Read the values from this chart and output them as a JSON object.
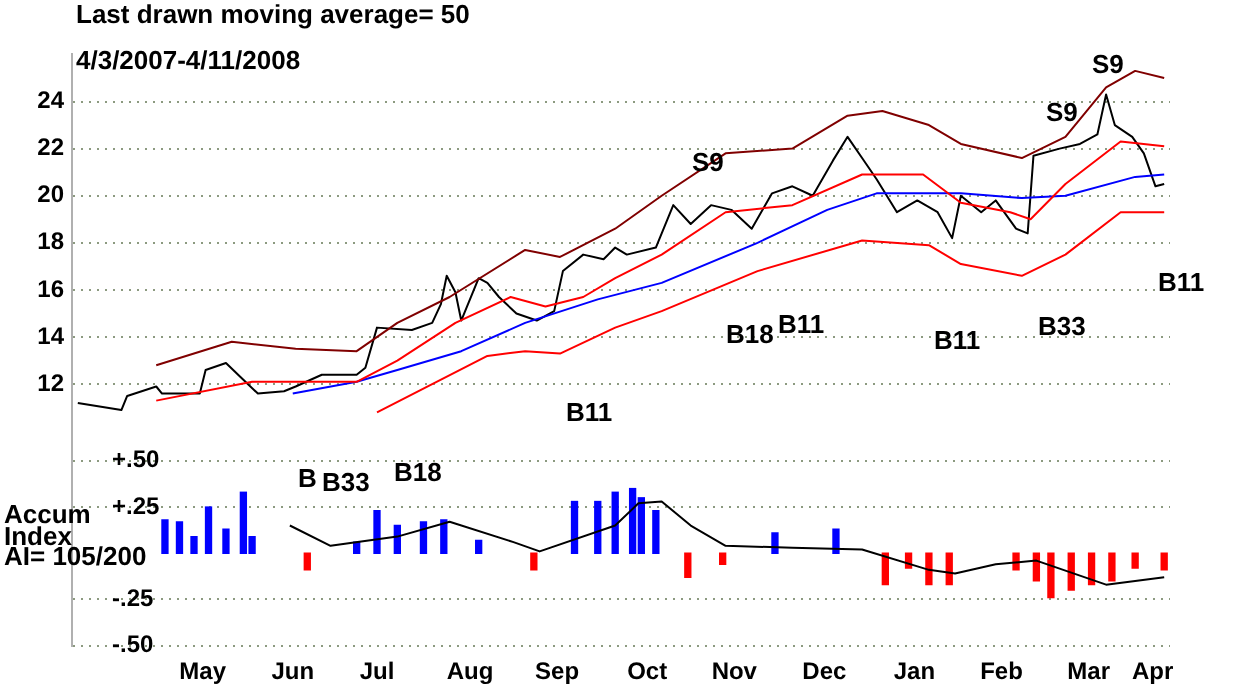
{
  "chart_data": {
    "type": "line",
    "title": "Last drawn moving average= 50",
    "annotations": [
      "4/3/2007-4/11/2008",
      "AI= 105/200",
      "B",
      "B33",
      "B18",
      "S9",
      "S9",
      "S9",
      "B11",
      "B18",
      "B11",
      "B11",
      "B33",
      "B11",
      "Accum Index"
    ],
    "xlim": [
      "2007-04-01",
      "2008-04-13"
    ],
    "xticks": [
      {
        "value": "2007-05-16",
        "label": "May"
      },
      {
        "value": "2007-06-16",
        "label": "Jun"
      },
      {
        "value": "2007-07-15",
        "label": "Jul"
      },
      {
        "value": "2007-08-16",
        "label": "Aug"
      },
      {
        "value": "2007-09-15",
        "label": "Sep"
      },
      {
        "value": "2007-10-16",
        "label": "Oct"
      },
      {
        "value": "2007-11-15",
        "label": "Nov"
      },
      {
        "value": "2007-12-16",
        "label": "Dec"
      },
      {
        "value": "2008-01-16",
        "label": "Jan"
      },
      {
        "value": "2008-02-15",
        "label": "Feb"
      },
      {
        "value": "2008-03-16",
        "label": "Mar"
      },
      {
        "value": "2008-04-07",
        "label": "Apr"
      }
    ],
    "ylim": [
      0.9,
      26
    ],
    "yticks": [
      12,
      14,
      16,
      18,
      20,
      22,
      24
    ],
    "y2lim": [
      -0.5,
      2.7
    ],
    "y2ticks": [
      {
        "value": 0.5,
        "label": "+.50"
      },
      {
        "value": 0.25,
        "label": "+.25"
      },
      {
        "value": -0.25,
        "label": "-.25"
      },
      {
        "value": -0.5,
        "label": "-.50"
      }
    ],
    "grid": "y",
    "marker": "none",
    "series": [
      {
        "color": "#800000",
        "x": [
          "2007-04-30",
          "2007-05-26",
          "2007-06-17",
          "2007-07-08",
          "2007-07-22",
          "2007-08-09",
          "2007-09-04",
          "2007-09-16",
          "2007-10-05",
          "2007-10-21",
          "2007-11-12",
          "2007-12-05",
          "2007-12-24",
          "2008-01-05",
          "2008-01-21",
          "2008-02-01",
          "2008-02-22",
          "2008-03-08",
          "2008-03-22",
          "2008-04-01",
          "2008-04-11"
        ],
        "values": [
          12.8,
          13.8,
          13.5,
          13.4,
          14.6,
          15.7,
          17.7,
          17.4,
          18.6,
          20.0,
          21.8,
          22.0,
          23.4,
          23.6,
          23.0,
          22.2,
          21.6,
          22.5,
          24.6,
          25.3,
          25.0
        ]
      },
      {
        "color": "#ff0000",
        "x": [
          "2007-04-30",
          "2007-06-02",
          "2007-06-22",
          "2007-07-08",
          "2007-07-22",
          "2007-08-11",
          "2007-08-30",
          "2007-09-11",
          "2007-09-24",
          "2007-10-05",
          "2007-10-21",
          "2007-11-12",
          "2007-12-05",
          "2007-12-29",
          "2008-01-19",
          "2008-02-01",
          "2008-02-18",
          "2008-02-25",
          "2008-03-08",
          "2008-03-27",
          "2008-04-11"
        ],
        "values": [
          11.3,
          12.1,
          12.1,
          12.1,
          13.0,
          14.6,
          15.7,
          15.3,
          15.7,
          16.5,
          17.5,
          19.3,
          19.6,
          20.9,
          20.9,
          19.7,
          19.3,
          19.0,
          20.5,
          22.3,
          22.1
        ]
      },
      {
        "color": "#ff0000",
        "x": [
          "2007-07-15",
          "2007-08-22",
          "2007-09-04",
          "2007-09-16",
          "2007-10-05",
          "2007-10-21",
          "2007-11-23",
          "2007-12-29",
          "2008-01-21",
          "2008-02-01",
          "2008-02-22",
          "2008-03-08",
          "2008-03-27",
          "2008-04-11"
        ],
        "values": [
          10.8,
          13.2,
          13.4,
          13.3,
          14.4,
          15.1,
          16.8,
          18.1,
          17.9,
          17.1,
          16.6,
          17.5,
          19.3,
          19.3
        ]
      },
      {
        "color": "#0000ff",
        "x": [
          "2007-06-16",
          "2007-07-08",
          "2007-07-22",
          "2007-08-13",
          "2007-09-04",
          "2007-09-29",
          "2007-10-21",
          "2007-11-23",
          "2007-12-17",
          "2008-01-03",
          "2008-02-01",
          "2008-02-22",
          "2008-03-08",
          "2008-04-01",
          "2008-04-11"
        ],
        "values": [
          11.6,
          12.1,
          12.6,
          13.4,
          14.6,
          15.6,
          16.3,
          18.0,
          19.4,
          20.1,
          20.1,
          19.9,
          20.0,
          20.8,
          20.9
        ]
      },
      {
        "color": "#000000",
        "x": [
          "2007-04-03",
          "2007-04-18",
          "2007-04-20",
          "2007-04-30",
          "2007-05-02",
          "2007-05-15",
          "2007-05-17",
          "2007-05-24",
          "2007-05-29",
          "2007-06-04",
          "2007-06-13",
          "2007-06-17",
          "2007-06-26",
          "2007-07-08",
          "2007-07-11",
          "2007-07-15",
          "2007-07-27",
          "2007-08-03",
          "2007-08-06",
          "2007-08-08",
          "2007-08-11",
          "2007-08-13",
          "2007-08-19",
          "2007-08-22",
          "2007-08-26",
          "2007-09-01",
          "2007-09-08",
          "2007-09-14",
          "2007-09-17",
          "2007-09-24",
          "2007-10-01",
          "2007-10-05",
          "2007-10-09",
          "2007-10-19",
          "2007-10-25",
          "2007-10-31",
          "2007-11-07",
          "2007-11-14",
          "2007-11-21",
          "2007-11-28",
          "2007-12-05",
          "2007-12-12",
          "2007-12-19",
          "2007-12-24",
          "2007-12-29",
          "2008-01-03",
          "2008-01-10",
          "2008-01-17",
          "2008-01-24",
          "2008-01-29",
          "2008-02-01",
          "2008-02-08",
          "2008-02-13",
          "2008-02-20",
          "2008-02-24",
          "2008-02-26",
          "2008-03-06",
          "2008-03-13",
          "2008-03-19",
          "2008-03-22",
          "2008-03-25",
          "2008-03-31",
          "2008-04-04",
          "2008-04-08",
          "2008-04-11"
        ],
        "values": [
          11.2,
          10.9,
          11.5,
          11.9,
          11.6,
          11.6,
          12.6,
          12.9,
          12.3,
          11.6,
          11.7,
          11.9,
          12.4,
          12.4,
          12.7,
          14.4,
          14.3,
          14.6,
          15.4,
          16.6,
          15.9,
          14.7,
          16.5,
          16.3,
          15.7,
          15.0,
          14.7,
          15.1,
          16.8,
          17.5,
          17.3,
          17.8,
          17.5,
          17.8,
          19.6,
          18.8,
          19.6,
          19.4,
          18.6,
          20.1,
          20.4,
          20.0,
          21.5,
          22.5,
          21.6,
          20.7,
          19.3,
          19.8,
          19.3,
          18.2,
          20.0,
          19.3,
          19.8,
          18.6,
          18.4,
          21.7,
          22.0,
          22.2,
          22.6,
          24.3,
          23.0,
          22.5,
          21.8,
          20.4,
          20.5
        ]
      },
      {
        "type": "bar",
        "axis": "y2",
        "x": [
          "2007-05-03",
          "2007-05-08",
          "2007-05-13",
          "2007-05-18",
          "2007-05-24",
          "2007-05-30",
          "2007-06-02",
          "2007-06-21",
          "2007-07-08",
          "2007-07-15",
          "2007-07-22",
          "2007-07-31",
          "2007-08-07",
          "2007-08-19",
          "2007-09-07",
          "2007-09-21",
          "2007-09-29",
          "2007-10-05",
          "2007-10-11",
          "2007-10-14",
          "2007-10-19",
          "2007-10-30",
          "2007-11-11",
          "2007-11-29",
          "2007-12-20",
          "2008-01-06",
          "2008-01-14",
          "2008-01-21",
          "2008-01-28",
          "2008-02-20",
          "2008-02-27",
          "2008-03-03",
          "2008-03-10",
          "2008-03-17",
          "2008-03-24",
          "2008-04-01",
          "2008-04-11"
        ],
        "values": [
          0.18,
          0.17,
          0.09,
          0.25,
          0.13,
          0.33,
          0.09,
          -0.09,
          0.06,
          0.23,
          0.15,
          0.17,
          0.18,
          0.07,
          -0.09,
          0.28,
          0.28,
          0.33,
          0.35,
          0.3,
          0.23,
          -0.13,
          -0.06,
          0.11,
          0.13,
          -0.17,
          -0.08,
          -0.17,
          -0.17,
          -0.09,
          -0.15,
          -0.24,
          -0.2,
          -0.17,
          -0.15,
          -0.08,
          -0.09
        ],
        "colors": [
          "#0000ff",
          "#0000ff",
          "#0000ff",
          "#0000ff",
          "#0000ff",
          "#0000ff",
          "#0000ff",
          "#ff0000",
          "#0000ff",
          "#0000ff",
          "#0000ff",
          "#0000ff",
          "#0000ff",
          "#0000ff",
          "#ff0000",
          "#0000ff",
          "#0000ff",
          "#0000ff",
          "#0000ff",
          "#0000ff",
          "#0000ff",
          "#ff0000",
          "#ff0000",
          "#0000ff",
          "#0000ff",
          "#ff0000",
          "#ff0000",
          "#ff0000",
          "#ff0000",
          "#ff0000",
          "#ff0000",
          "#ff0000",
          "#ff0000",
          "#ff0000",
          "#ff0000",
          "#ff0000",
          "#ff0000"
        ]
      },
      {
        "axis": "y2",
        "color": "#000000",
        "x": [
          "2007-06-15",
          "2007-06-29",
          "2007-07-22",
          "2007-08-09",
          "2007-08-31",
          "2007-09-09",
          "2007-10-05",
          "2007-10-13",
          "2007-10-21",
          "2007-10-31",
          "2007-11-12",
          "2007-12-05",
          "2007-12-29",
          "2008-01-21",
          "2008-01-30",
          "2008-02-13",
          "2008-02-27",
          "2008-03-22",
          "2008-04-11"
        ],
        "values": [
          0.15,
          0.04,
          0.09,
          0.17,
          0.06,
          0.01,
          0.15,
          0.27,
          0.28,
          0.15,
          0.04,
          0.03,
          0.02,
          -0.09,
          -0.11,
          -0.06,
          -0.04,
          -0.17,
          -0.13
        ]
      }
    ]
  }
}
